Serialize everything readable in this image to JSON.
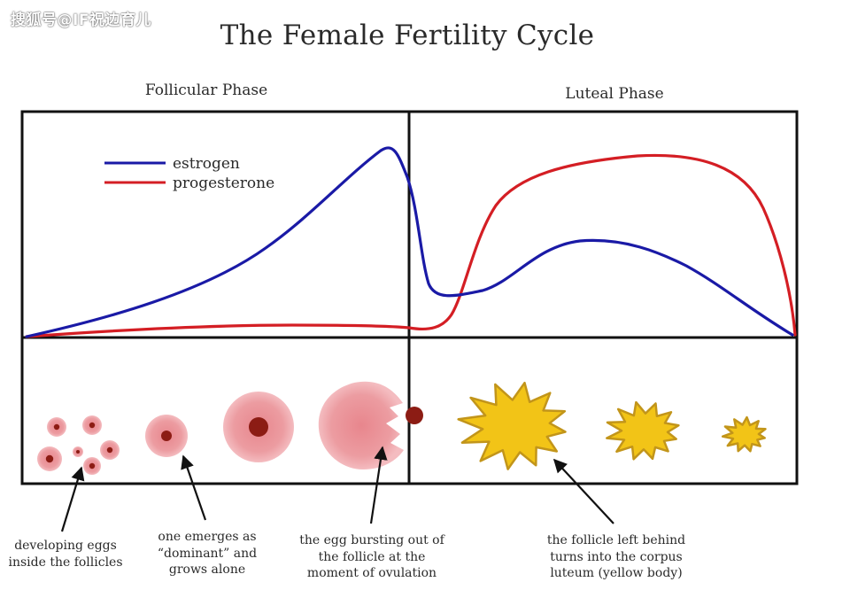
{
  "watermark": "搜狐号@IF祝边育儿",
  "title": "The Female Fertility Cycle",
  "phases": {
    "follicular": "Follicular Phase",
    "luteal": "Luteal Phase"
  },
  "legend": {
    "estrogen": "estrogen",
    "progesterone": "progesterone"
  },
  "colors": {
    "estrogen": "#1a1aa6",
    "progesterone": "#d41e24",
    "follicle_fill": "#ec9ca1",
    "follicle_edge": "#f6c3c7",
    "follicle_core": "#8c1c14",
    "corpus_luteum": "#f2c417",
    "corpus_luteum_edge": "#c2951a"
  },
  "captions": {
    "developing": [
      "developing eggs",
      "inside the follicles"
    ],
    "dominant": [
      "one emerges as",
      "“dominant” and",
      "grows alone"
    ],
    "ovulation": [
      "the egg bursting out of",
      "the follicle at the",
      "moment of ovulation"
    ],
    "corpus": [
      "the follicle left behind",
      "turns into the corpus",
      "luteum (yellow body)"
    ]
  }
}
